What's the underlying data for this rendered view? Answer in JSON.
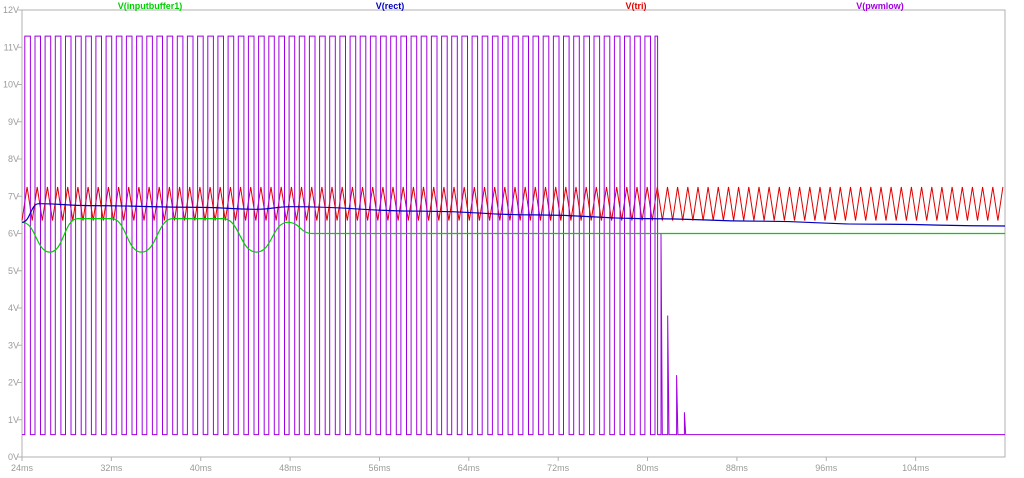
{
  "chart_data": {
    "type": "line",
    "title": "",
    "xlabel": "",
    "ylabel": "",
    "xlim": [
      24,
      112
    ],
    "ylim": [
      0,
      12
    ],
    "grid": false,
    "legend": "top",
    "x_ticks": [
      "24ms",
      "32ms",
      "40ms",
      "48ms",
      "56ms",
      "64ms",
      "72ms",
      "80ms",
      "88ms",
      "96ms",
      "104ms"
    ],
    "x_tick_values": [
      24,
      32,
      40,
      48,
      56,
      64,
      72,
      80,
      88,
      96,
      104
    ],
    "y_ticks": [
      "0V",
      "1V",
      "2V",
      "3V",
      "4V",
      "5V",
      "6V",
      "7V",
      "8V",
      "9V",
      "10V",
      "11V",
      "12V"
    ],
    "y_tick_values": [
      0,
      1,
      2,
      3,
      4,
      5,
      6,
      7,
      8,
      9,
      10,
      11,
      12
    ],
    "series": [
      {
        "name": "V(inputbuffer1)",
        "color": "#00d000",
        "description_points": [
          [
            24,
            6.3
          ],
          [
            26.5,
            5.5
          ],
          [
            29,
            6.4
          ],
          [
            32,
            6.4
          ],
          [
            34.7,
            5.5
          ],
          [
            37.5,
            6.4
          ],
          [
            42,
            6.4
          ],
          [
            45,
            5.5
          ],
          [
            47.8,
            6.3
          ],
          [
            50,
            6.0
          ],
          [
            112,
            6.0
          ]
        ]
      },
      {
        "name": "V(rect)",
        "color": "#0000c0",
        "description_points": [
          [
            24,
            6.3
          ],
          [
            25.5,
            6.8
          ],
          [
            30,
            6.75
          ],
          [
            40,
            6.7
          ],
          [
            45,
            6.65
          ],
          [
            48,
            6.72
          ],
          [
            60,
            6.6
          ],
          [
            70,
            6.5
          ],
          [
            80,
            6.4
          ],
          [
            90,
            6.33
          ],
          [
            100,
            6.25
          ],
          [
            112,
            6.2
          ]
        ]
      },
      {
        "name": "V(tri)",
        "color": "#e00000",
        "low": 6.35,
        "high": 7.25,
        "period_ms": 0.91,
        "x_range": [
          24,
          112
        ]
      },
      {
        "name": "V(pwmlow)",
        "color": "#a000e0",
        "low": 0.6,
        "high": 11.3,
        "switching_until_ms": 80.9,
        "after_switching_level": 0.6,
        "decay_spikes": [
          [
            81.2,
            6.0
          ],
          [
            81.8,
            3.8
          ],
          [
            82.6,
            2.2
          ],
          [
            83.3,
            1.2
          ]
        ]
      }
    ]
  }
}
